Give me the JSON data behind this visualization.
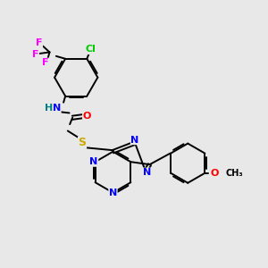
{
  "bg_color": "#e8e8e8",
  "bond_color": "#000000",
  "atom_colors": {
    "N": "#0000ff",
    "O": "#ff0000",
    "S": "#ccaa00",
    "F": "#ff00ff",
    "Cl": "#00cc00",
    "H": "#008080",
    "C": "#000000"
  },
  "font_size": 8,
  "lw": 1.4
}
